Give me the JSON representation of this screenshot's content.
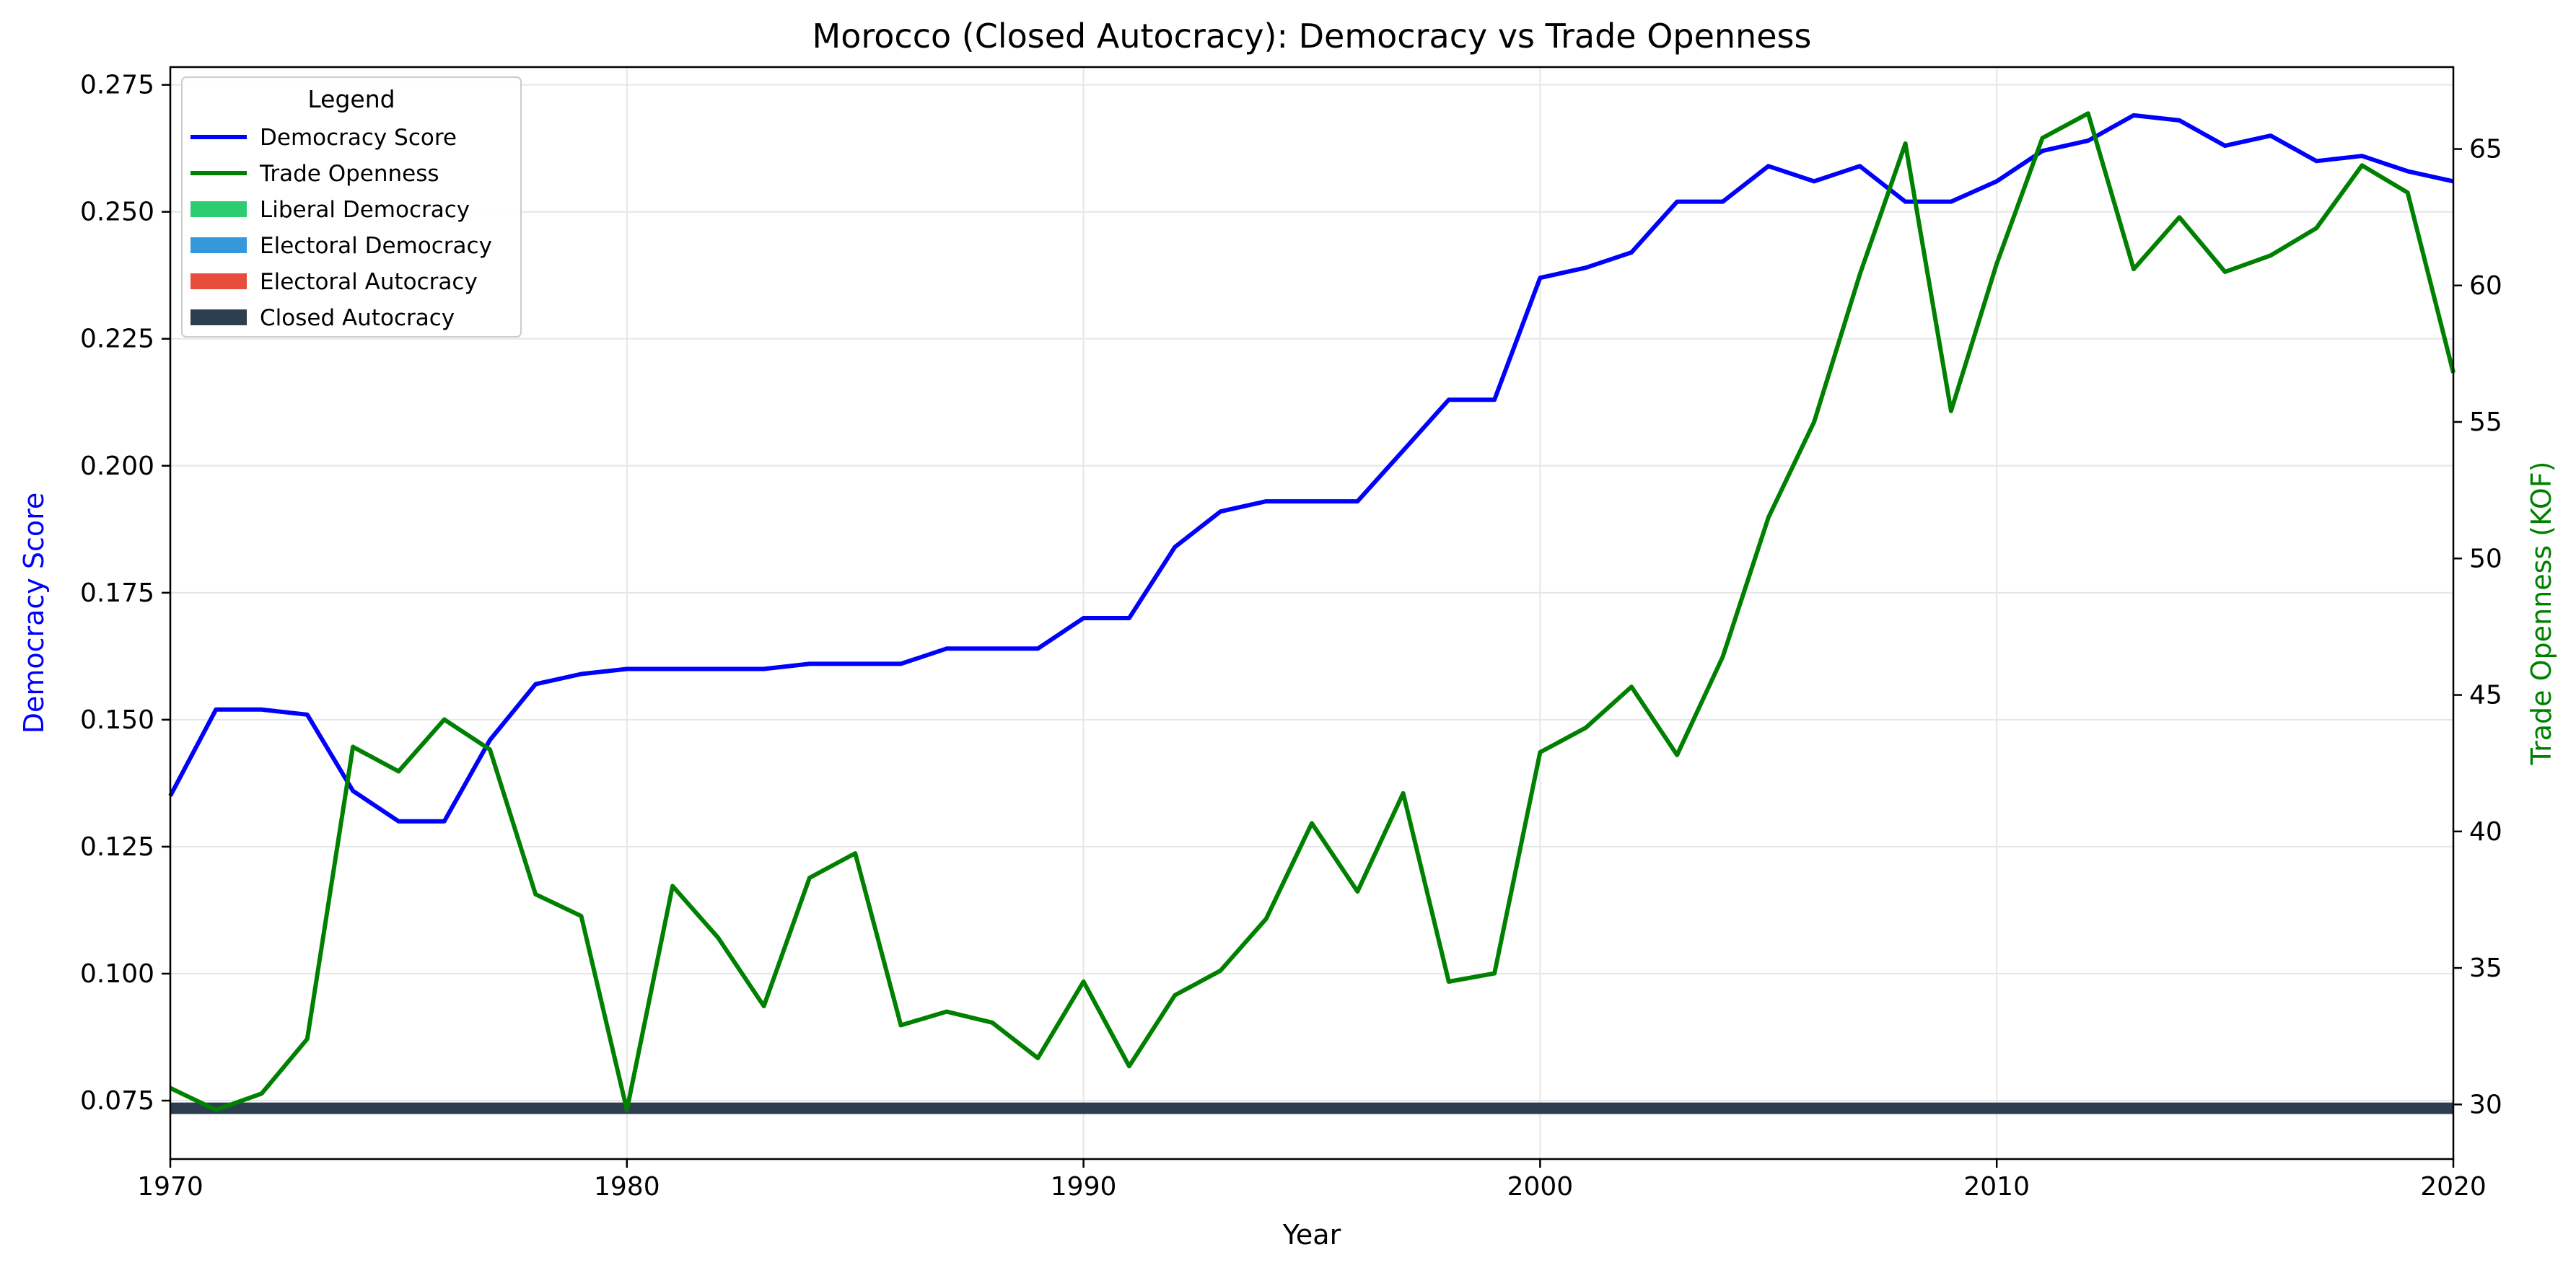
{
  "chart_data": {
    "type": "line",
    "title": "Morocco (Closed Autocracy): Democracy vs Trade Openness",
    "xlabel": "Year",
    "ylabel_left": "Democracy Score",
    "ylabel_right": "Trade Openness (KOF)",
    "xlim": [
      1970,
      2020
    ],
    "ylim_left": [
      0.0635,
      0.2785
    ],
    "ylim_right": [
      28,
      68
    ],
    "x_ticks": [
      1970,
      1980,
      1990,
      2000,
      2010,
      2020
    ],
    "y_ticks_left": [
      "0.075",
      "0.100",
      "0.125",
      "0.150",
      "0.175",
      "0.200",
      "0.225",
      "0.250",
      "0.275"
    ],
    "y_ticks_right": [
      "30",
      "35",
      "40",
      "45",
      "50",
      "55",
      "60",
      "65"
    ],
    "grid": true,
    "legend_position": "top-left",
    "legend_title": "Legend",
    "regime_band": {
      "label": "Closed Autocracy",
      "color": "#2c3e50",
      "y_value": 0.0735,
      "x_range": [
        1970,
        2020
      ]
    },
    "legend_entries": [
      {
        "label": "Democracy Score",
        "color": "#0000ff",
        "kind": "line"
      },
      {
        "label": "Trade Openness",
        "color": "#008000",
        "kind": "line"
      },
      {
        "label": "Liberal Democracy",
        "color": "#2ecc71",
        "kind": "patch"
      },
      {
        "label": "Electoral Democracy",
        "color": "#3498db",
        "kind": "patch"
      },
      {
        "label": "Electoral Autocracy",
        "color": "#e74c3c",
        "kind": "patch"
      },
      {
        "label": "Closed Autocracy",
        "color": "#2c3e50",
        "kind": "patch"
      }
    ],
    "series": [
      {
        "name": "Democracy Score",
        "axis": "left",
        "color": "#0000ff",
        "x": [
          1970,
          1971,
          1972,
          1973,
          1974,
          1975,
          1976,
          1977,
          1978,
          1979,
          1980,
          1981,
          1982,
          1983,
          1984,
          1985,
          1986,
          1987,
          1988,
          1989,
          1990,
          1991,
          1992,
          1993,
          1994,
          1995,
          1996,
          1997,
          1998,
          1999,
          2000,
          2001,
          2002,
          2003,
          2004,
          2005,
          2006,
          2007,
          2008,
          2009,
          2010,
          2011,
          2012,
          2013,
          2014,
          2015,
          2016,
          2017,
          2018,
          2019,
          2020
        ],
        "values": [
          0.135,
          0.152,
          0.152,
          0.151,
          0.136,
          0.13,
          0.13,
          0.146,
          0.157,
          0.159,
          0.16,
          0.16,
          0.16,
          0.16,
          0.161,
          0.161,
          0.161,
          0.164,
          0.164,
          0.164,
          0.17,
          0.17,
          0.184,
          0.191,
          0.193,
          0.193,
          0.193,
          0.203,
          0.213,
          0.213,
          0.237,
          0.239,
          0.242,
          0.252,
          0.252,
          0.259,
          0.256,
          0.259,
          0.252,
          0.252,
          0.256,
          0.262,
          0.264,
          0.269,
          0.268,
          0.263,
          0.265,
          0.26,
          0.261,
          0.258,
          0.256
        ]
      },
      {
        "name": "Trade Openness",
        "axis": "right",
        "color": "#008000",
        "x": [
          1970,
          1971,
          1972,
          1973,
          1974,
          1975,
          1976,
          1977,
          1978,
          1979,
          1980,
          1981,
          1982,
          1983,
          1984,
          1985,
          1986,
          1987,
          1988,
          1989,
          1990,
          1991,
          1992,
          1993,
          1994,
          1995,
          1996,
          1997,
          1998,
          1999,
          2000,
          2001,
          2002,
          2003,
          2004,
          2005,
          2006,
          2007,
          2008,
          2009,
          2010,
          2011,
          2012,
          2013,
          2014,
          2015,
          2016,
          2017,
          2018,
          2019,
          2020
        ],
        "values": [
          30.6,
          29.8,
          30.4,
          32.4,
          43.1,
          42.2,
          44.1,
          43.0,
          37.7,
          36.9,
          29.8,
          38.0,
          36.1,
          33.6,
          38.3,
          39.2,
          32.9,
          33.4,
          33.0,
          31.7,
          34.5,
          31.4,
          34.0,
          34.9,
          36.8,
          40.3,
          37.8,
          41.4,
          34.5,
          34.8,
          42.9,
          43.8,
          45.3,
          42.8,
          46.4,
          51.5,
          55.0,
          60.4,
          65.2,
          55.4,
          60.8,
          65.4,
          66.3,
          60.6,
          62.5,
          60.5,
          61.1,
          62.1,
          64.4,
          63.4,
          56.8
        ]
      }
    ]
  }
}
